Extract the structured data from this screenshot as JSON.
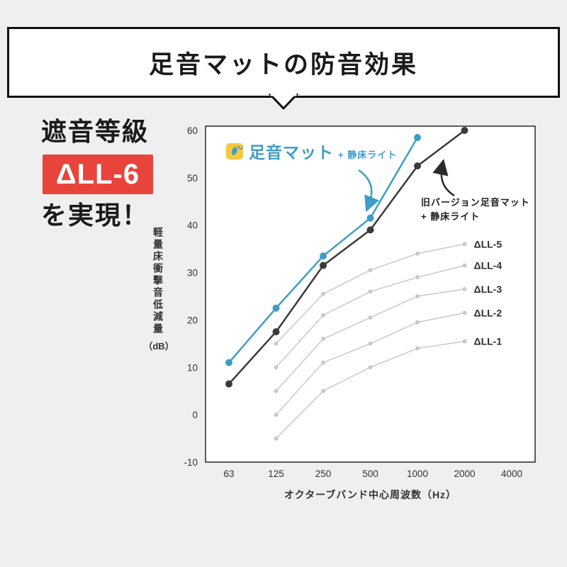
{
  "title": "足音マットの防音効果",
  "left_panel": {
    "line1": "遮音等級",
    "badge": "ΔLL-6",
    "line2": "を実現！",
    "badge_color": "#e8443c"
  },
  "chart_data": {
    "type": "line",
    "x_categories": [
      63,
      125,
      250,
      500,
      1000,
      2000,
      4000
    ],
    "xlabel": "オクターブバンド中心周波数（Hz）",
    "ylabel": "軽量床衝撃音低減量",
    "ylabel_unit": "（dB）",
    "ylim": [
      -10,
      60
    ],
    "yticks": [
      60,
      50,
      40,
      30,
      20,
      10,
      0,
      -10
    ],
    "grid": false,
    "legend_position": "inside-top-left",
    "accent_blue": "#3e9dc8",
    "line_black": "#3a3a3a",
    "line_gray": "#c9c9c9",
    "series": [
      {
        "name": "足音マット + 静床ライト",
        "color": "#3e9dc8",
        "line_width": 2.5,
        "dot_radius": 5,
        "x": [
          63,
          125,
          250,
          500,
          1000
        ],
        "values": [
          11,
          22.5,
          33.5,
          41.5,
          58.5
        ],
        "label": false
      },
      {
        "name": "旧バージョン足音マット + 静床ライト",
        "color": "#3a3a3a",
        "line_width": 2.5,
        "dot_radius": 5,
        "x": [
          63,
          125,
          250,
          500,
          1000,
          2000
        ],
        "values": [
          6.5,
          17.5,
          31.5,
          39,
          52.5,
          60
        ],
        "label": false
      },
      {
        "name": "ΔLL-5",
        "color": "#c9c9c9",
        "line_width": 1.5,
        "dot_radius": 3,
        "x": [
          125,
          250,
          500,
          1000,
          2000
        ],
        "values": [
          15,
          25.5,
          30.5,
          34,
          36
        ],
        "label": true
      },
      {
        "name": "ΔLL-4",
        "color": "#c9c9c9",
        "line_width": 1.5,
        "dot_radius": 3,
        "x": [
          125,
          250,
          500,
          1000,
          2000
        ],
        "values": [
          10,
          21,
          26,
          29,
          31.5
        ],
        "label": true
      },
      {
        "name": "ΔLL-3",
        "color": "#c9c9c9",
        "line_width": 1.5,
        "dot_radius": 3,
        "x": [
          125,
          250,
          500,
          1000,
          2000
        ],
        "values": [
          5,
          16,
          20.5,
          25,
          26.5
        ],
        "label": true
      },
      {
        "name": "ΔLL-2",
        "color": "#c9c9c9",
        "line_width": 1.5,
        "dot_radius": 3,
        "x": [
          125,
          250,
          500,
          1000,
          2000
        ],
        "values": [
          0,
          11,
          15,
          19.5,
          21.5
        ],
        "label": true
      },
      {
        "name": "ΔLL-1",
        "color": "#c9c9c9",
        "line_width": 1.5,
        "dot_radius": 3,
        "x": [
          125,
          250,
          500,
          1000,
          2000
        ],
        "values": [
          -5,
          5,
          10,
          14,
          15.5
        ],
        "label": true
      }
    ],
    "legend": {
      "new_brand": "足音マット",
      "new_suffix": "+ 静床ライト",
      "old_line1": "旧バージョン足音マット",
      "old_line2": "+ 静床ライト"
    }
  }
}
